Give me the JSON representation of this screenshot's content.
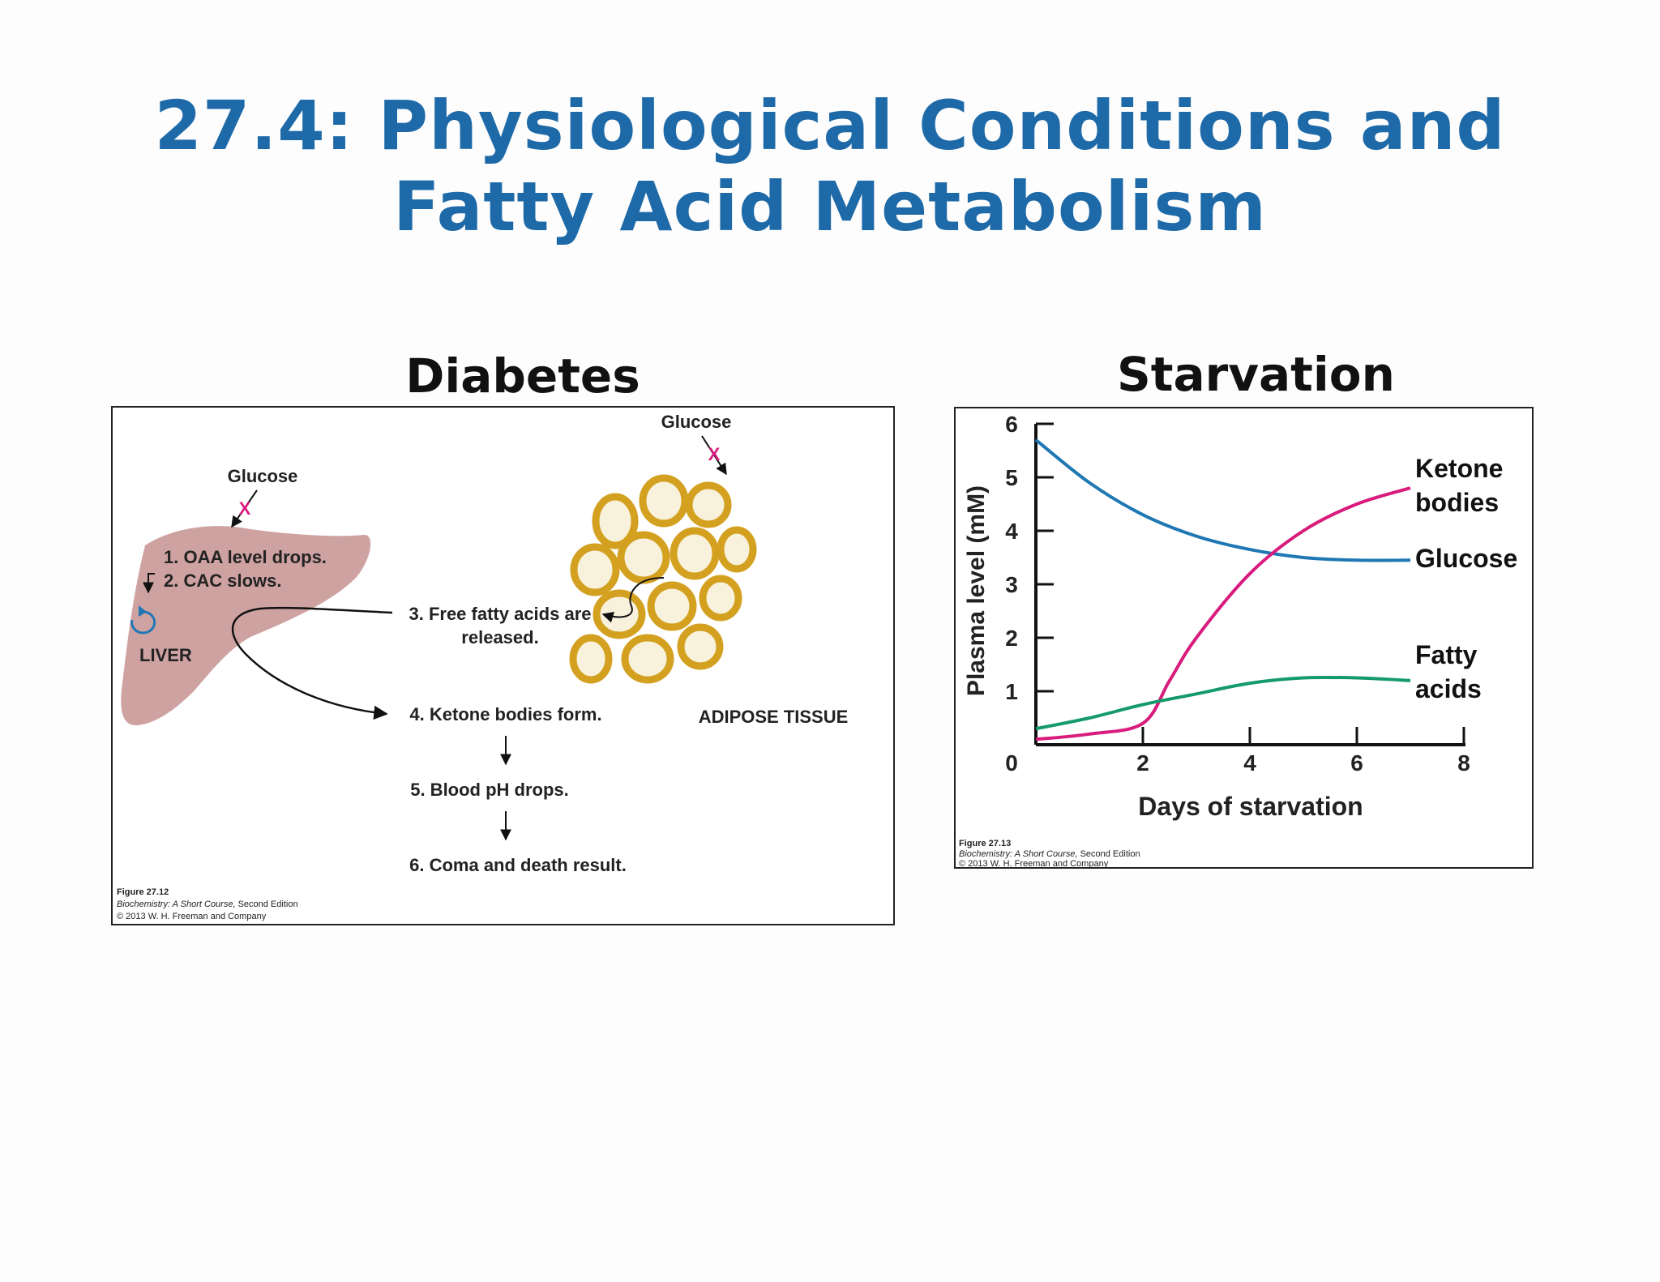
{
  "slide": {
    "title_line1": "27.4: Physiological Conditions and",
    "title_line2": "Fatty Acid Metabolism"
  },
  "diabetes": {
    "heading": "Diabetes",
    "glucose_liver": "Glucose",
    "glucose_adipose": "Glucose",
    "blocked_mark": "X",
    "liver_label": "LIVER",
    "adipose_label": "ADIPOSE TISSUE",
    "steps": [
      "1. OAA level drops.",
      "2. CAC slows.",
      "3. Free fatty acids are",
      "released.",
      "4. Ketone bodies form.",
      "5. Blood pH drops.",
      "6. Coma and death result."
    ],
    "credit": {
      "figure": "Figure 27.12",
      "book": "Biochemistry: A Short Course,",
      "edition": " Second Edition",
      "copyright": "© 2013 W. H. Freeman and Company"
    }
  },
  "starvation": {
    "heading": "Starvation",
    "credit": {
      "figure": "Figure 27.13",
      "book": "Biochemistry: A Short Course,",
      "edition": " Second Edition",
      "copyright": "© 2013 W. H. Freeman and Company"
    }
  },
  "chart_data": {
    "type": "line",
    "xlabel": "Days of starvation",
    "ylabel": "Plasma level (mM)",
    "xlim": [
      0,
      8
    ],
    "ylim": [
      0,
      6
    ],
    "xticks": [
      "0",
      "2",
      "4",
      "6",
      "8"
    ],
    "yticks": [
      "1",
      "2",
      "3",
      "4",
      "5",
      "6"
    ],
    "series": [
      {
        "name": "Glucose",
        "color": "#1f77b4",
        "x": [
          0,
          1,
          2,
          3,
          4,
          5,
          6,
          7
        ],
        "y": [
          5.7,
          4.9,
          4.3,
          3.9,
          3.65,
          3.5,
          3.45,
          3.45
        ]
      },
      {
        "name": "Ketone bodies",
        "color": "#d81b7d",
        "x": [
          0,
          1,
          2,
          2.5,
          3,
          4,
          5,
          6,
          7
        ],
        "y": [
          0.1,
          0.2,
          0.4,
          1.2,
          2.0,
          3.2,
          4.0,
          4.5,
          4.8
        ]
      },
      {
        "name": "Fatty acids",
        "color": "#159a6a",
        "x": [
          0,
          1,
          2,
          3,
          4,
          5,
          6,
          7
        ],
        "y": [
          0.3,
          0.5,
          0.75,
          0.95,
          1.15,
          1.25,
          1.25,
          1.2
        ]
      }
    ],
    "legend_labels": [
      {
        "line1": "Ketone",
        "line2": "bodies"
      },
      {
        "line1": "Glucose",
        "line2": ""
      },
      {
        "line1": "Fatty",
        "line2": "acids"
      }
    ]
  }
}
